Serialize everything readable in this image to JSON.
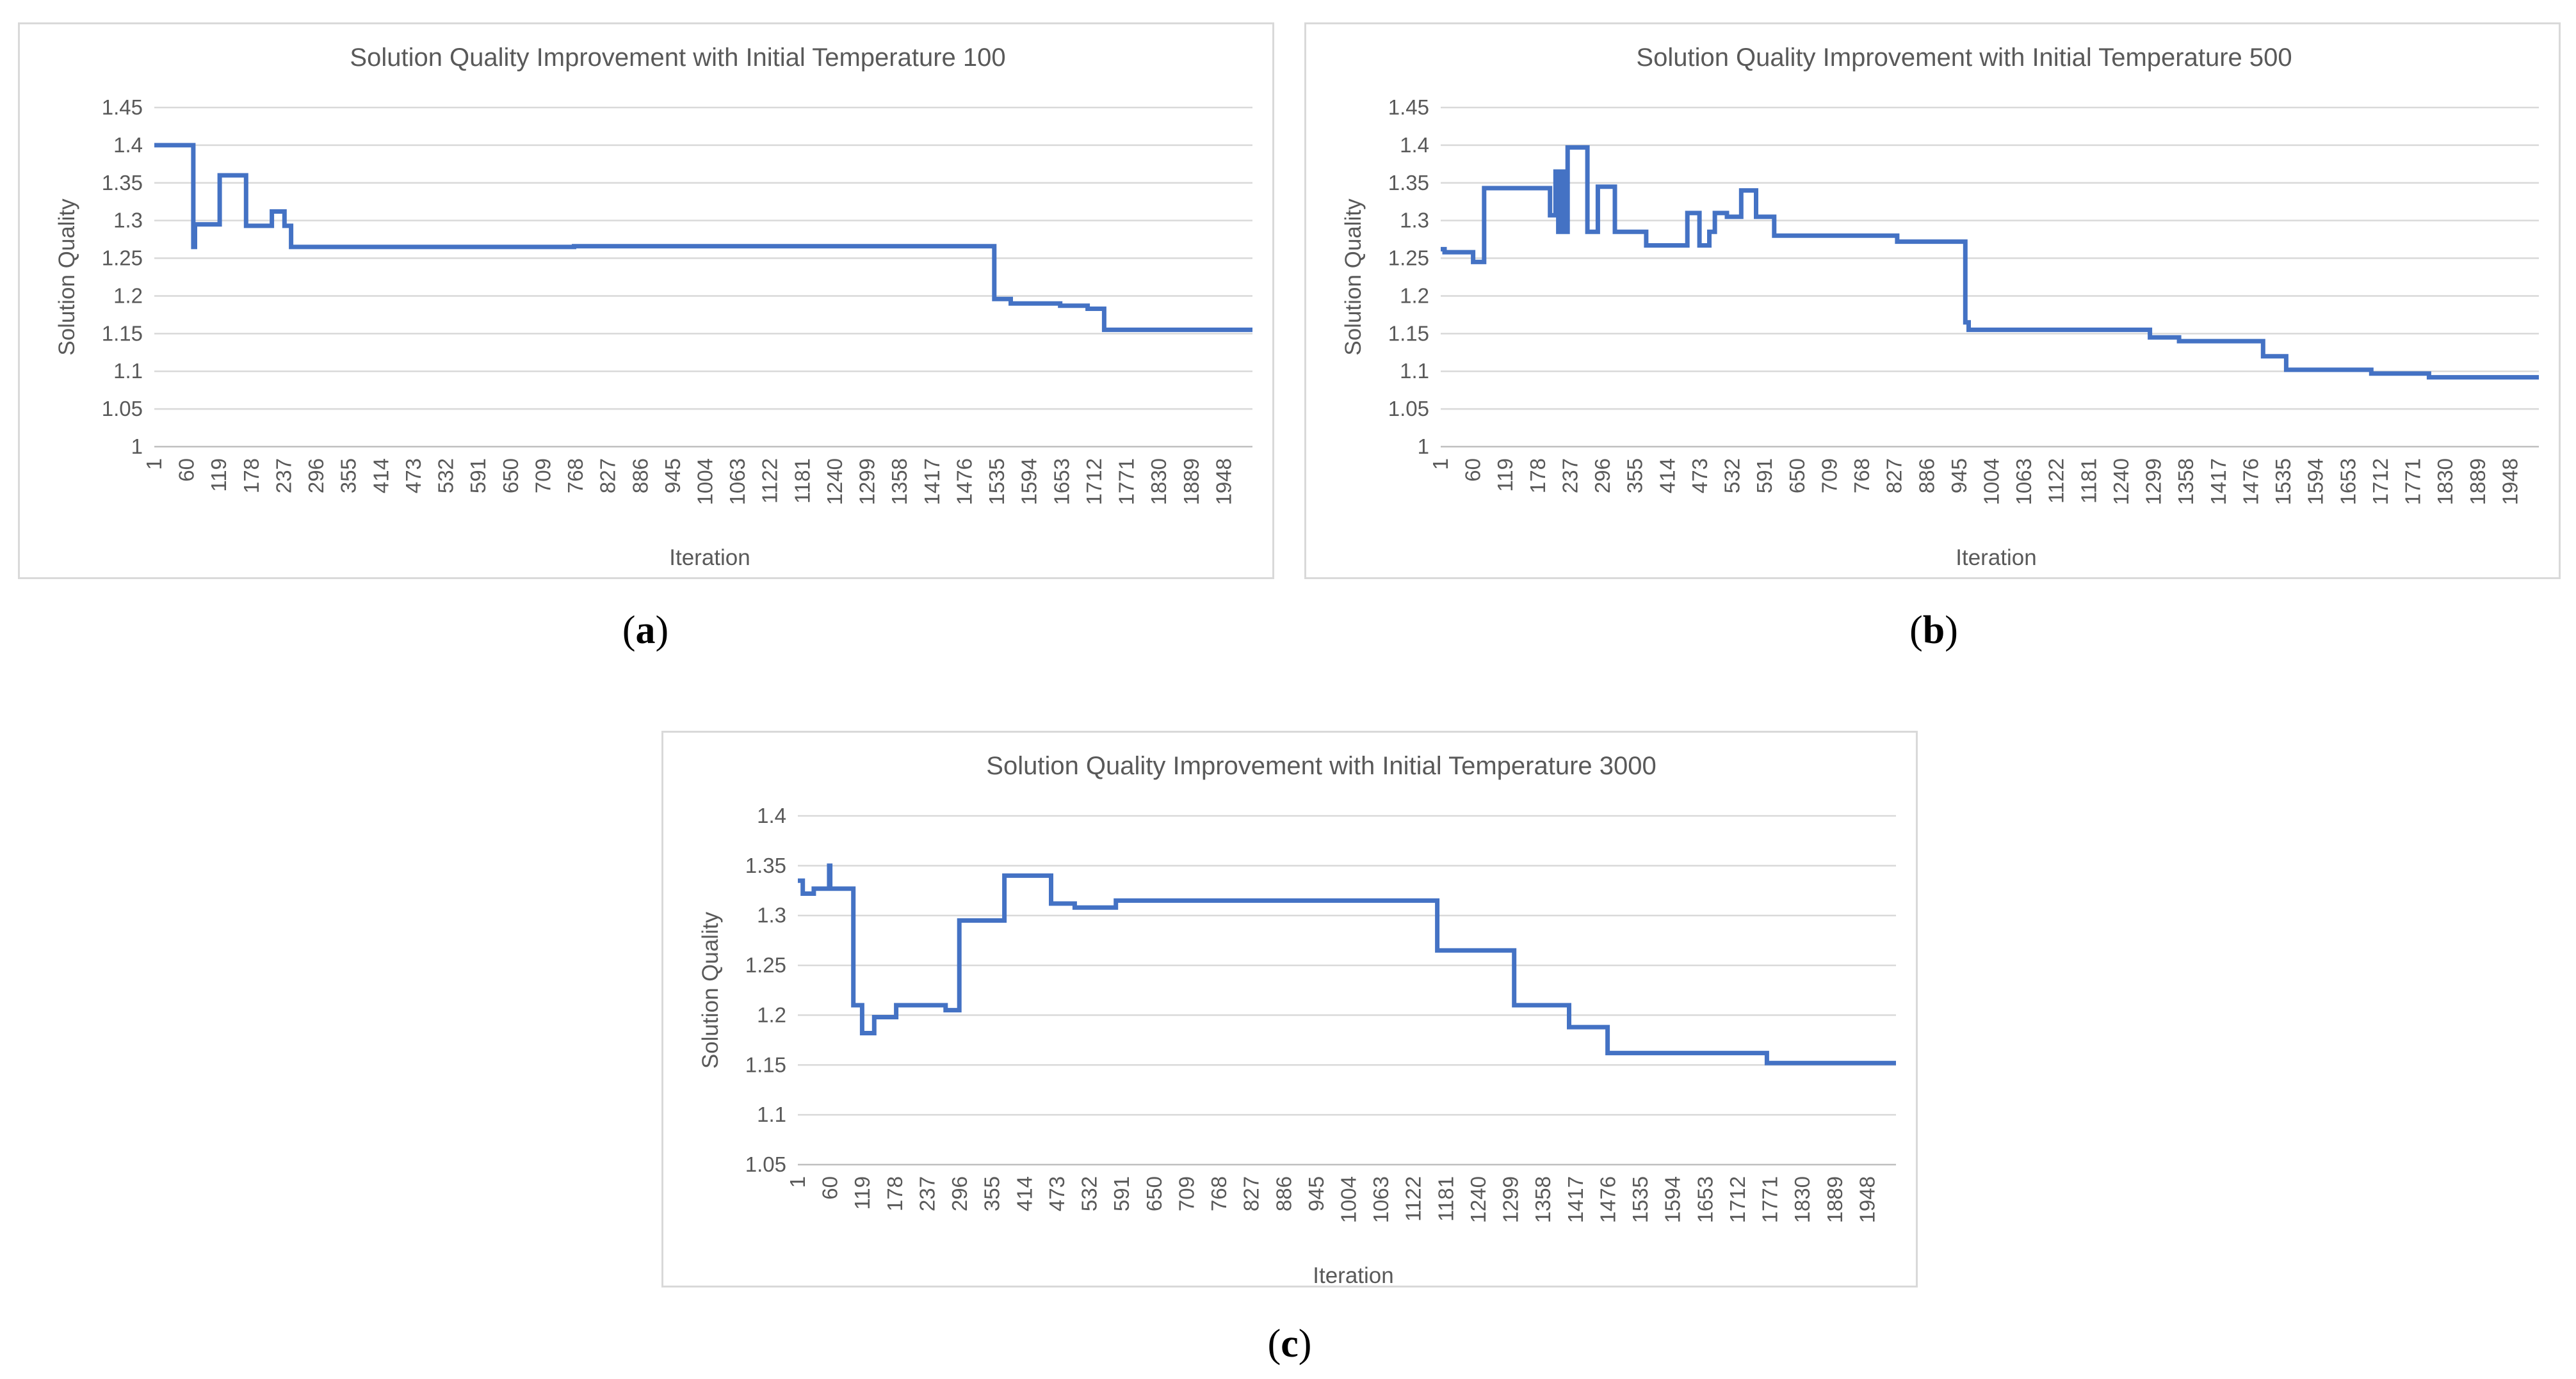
{
  "colors": {
    "series": "#4472c4",
    "grid": "#d9d9d9",
    "text": "#595959"
  },
  "captions": [
    "a",
    "b",
    "c"
  ],
  "chart_data": [
    {
      "type": "line",
      "title": "Solution Quality Improvement with Initial Temperature 100",
      "xlabel": "Iteration",
      "ylabel": "Solution Quality",
      "ylim": [
        1,
        1.45
      ],
      "ytick_step": 0.05,
      "yticks": [
        "1",
        "1.05",
        "1.1",
        "1.15",
        "1.2",
        "1.25",
        "1.3",
        "1.35",
        "1.4",
        "1.45"
      ],
      "xlim": [
        1,
        2000
      ],
      "xticks": [
        "1",
        "60",
        "119",
        "178",
        "237",
        "296",
        "355",
        "414",
        "473",
        "532",
        "591",
        "650",
        "709",
        "768",
        "827",
        "886",
        "945",
        "1004",
        "1063",
        "1122",
        "1181",
        "1240",
        "1299",
        "1358",
        "1417",
        "1476",
        "1535",
        "1594",
        "1653",
        "1712",
        "1771",
        "1830",
        "1889",
        "1948"
      ],
      "grid": true,
      "series": [
        {
          "name": "Solution Quality",
          "points": [
            [
              1,
              1.4
            ],
            [
              72,
              1.4
            ],
            [
              72,
              1.265
            ],
            [
              75,
              1.265
            ],
            [
              75,
              1.295
            ],
            [
              120,
              1.295
            ],
            [
              120,
              1.36
            ],
            [
              168,
              1.36
            ],
            [
              168,
              1.293
            ],
            [
              215,
              1.293
            ],
            [
              215,
              1.312
            ],
            [
              238,
              1.312
            ],
            [
              238,
              1.293
            ],
            [
              250,
              1.293
            ],
            [
              250,
              1.265
            ],
            [
              765,
              1.265
            ],
            [
              765,
              1.266
            ],
            [
              1530,
              1.266
            ],
            [
              1530,
              1.196
            ],
            [
              1560,
              1.196
            ],
            [
              1560,
              1.19
            ],
            [
              1650,
              1.19
            ],
            [
              1650,
              1.187
            ],
            [
              1700,
              1.187
            ],
            [
              1700,
              1.183
            ],
            [
              1730,
              1.183
            ],
            [
              1730,
              1.155
            ],
            [
              2000,
              1.155
            ]
          ]
        }
      ]
    },
    {
      "type": "line",
      "title": "Solution Quality Improvement with Initial Temperature 500",
      "xlabel": "Iteration",
      "ylabel": "Solution Quality",
      "ylim": [
        1,
        1.45
      ],
      "ytick_step": 0.05,
      "yticks": [
        "1",
        "1.05",
        "1.1",
        "1.15",
        "1.2",
        "1.25",
        "1.3",
        "1.35",
        "1.4",
        "1.45"
      ],
      "xlim": [
        1,
        2000
      ],
      "xticks": [
        "1",
        "60",
        "119",
        "178",
        "237",
        "296",
        "355",
        "414",
        "473",
        "532",
        "591",
        "650",
        "709",
        "768",
        "827",
        "886",
        "945",
        "1004",
        "1063",
        "1122",
        "1181",
        "1240",
        "1299",
        "1358",
        "1417",
        "1476",
        "1535",
        "1594",
        "1653",
        "1712",
        "1771",
        "1830",
        "1889",
        "1948"
      ],
      "grid": true,
      "series": [
        {
          "name": "Solution Quality",
          "points": [
            [
              1,
              1.262
            ],
            [
              8,
              1.262
            ],
            [
              8,
              1.258
            ],
            [
              60,
              1.258
            ],
            [
              60,
              1.245
            ],
            [
              80,
              1.245
            ],
            [
              80,
              1.343
            ],
            [
              200,
              1.343
            ],
            [
              200,
              1.307
            ],
            [
              210,
              1.307
            ],
            [
              210,
              1.365
            ],
            [
              215,
              1.365
            ],
            [
              215,
              1.285
            ],
            [
              220,
              1.285
            ],
            [
              220,
              1.365
            ],
            [
              225,
              1.365
            ],
            [
              225,
              1.285
            ],
            [
              232,
              1.285
            ],
            [
              232,
              1.397
            ],
            [
              268,
              1.397
            ],
            [
              268,
              1.285
            ],
            [
              287,
              1.285
            ],
            [
              287,
              1.345
            ],
            [
              318,
              1.345
            ],
            [
              318,
              1.285
            ],
            [
              375,
              1.285
            ],
            [
              375,
              1.267
            ],
            [
              450,
              1.267
            ],
            [
              450,
              1.31
            ],
            [
              472,
              1.31
            ],
            [
              472,
              1.267
            ],
            [
              490,
              1.267
            ],
            [
              490,
              1.285
            ],
            [
              500,
              1.285
            ],
            [
              500,
              1.31
            ],
            [
              522,
              1.31
            ],
            [
              522,
              1.305
            ],
            [
              548,
              1.305
            ],
            [
              548,
              1.34
            ],
            [
              575,
              1.34
            ],
            [
              575,
              1.305
            ],
            [
              608,
              1.305
            ],
            [
              608,
              1.28
            ],
            [
              832,
              1.28
            ],
            [
              832,
              1.272
            ],
            [
              956,
              1.272
            ],
            [
              956,
              1.165
            ],
            [
              962,
              1.165
            ],
            [
              962,
              1.155
            ],
            [
              1292,
              1.155
            ],
            [
              1292,
              1.145
            ],
            [
              1345,
              1.145
            ],
            [
              1345,
              1.14
            ],
            [
              1498,
              1.14
            ],
            [
              1498,
              1.12
            ],
            [
              1540,
              1.12
            ],
            [
              1540,
              1.102
            ],
            [
              1695,
              1.102
            ],
            [
              1695,
              1.097
            ],
            [
              1800,
              1.097
            ],
            [
              1800,
              1.092
            ],
            [
              2000,
              1.092
            ]
          ]
        }
      ]
    },
    {
      "type": "line",
      "title": "Solution Quality Improvement with Initial Temperature 3000",
      "xlabel": "Iteration",
      "ylabel": "Solution Quality",
      "ylim": [
        1.05,
        1.4
      ],
      "ytick_step": 0.05,
      "yticks": [
        "1.05",
        "1.1",
        "1.15",
        "1.2",
        "1.25",
        "1.3",
        "1.35",
        "1.4"
      ],
      "xlim": [
        1,
        2000
      ],
      "xticks": [
        "1",
        "60",
        "119",
        "178",
        "237",
        "296",
        "355",
        "414",
        "473",
        "532",
        "591",
        "650",
        "709",
        "768",
        "827",
        "886",
        "945",
        "1004",
        "1063",
        "1122",
        "1181",
        "1240",
        "1299",
        "1358",
        "1417",
        "1476",
        "1535",
        "1594",
        "1653",
        "1712",
        "1771",
        "1830",
        "1889",
        "1948"
      ],
      "grid": true,
      "series": [
        {
          "name": "Solution Quality",
          "points": [
            [
              1,
              1.335
            ],
            [
              10,
              1.335
            ],
            [
              10,
              1.322
            ],
            [
              30,
              1.322
            ],
            [
              30,
              1.327
            ],
            [
              58,
              1.327
            ],
            [
              58,
              1.35
            ],
            [
              60,
              1.35
            ],
            [
              60,
              1.327
            ],
            [
              102,
              1.327
            ],
            [
              102,
              1.21
            ],
            [
              118,
              1.21
            ],
            [
              118,
              1.182
            ],
            [
              140,
              1.182
            ],
            [
              140,
              1.198
            ],
            [
              180,
              1.198
            ],
            [
              180,
              1.21
            ],
            [
              270,
              1.21
            ],
            [
              270,
              1.205
            ],
            [
              295,
              1.205
            ],
            [
              295,
              1.295
            ],
            [
              377,
              1.295
            ],
            [
              377,
              1.34
            ],
            [
              462,
              1.34
            ],
            [
              462,
              1.312
            ],
            [
              505,
              1.312
            ],
            [
              505,
              1.308
            ],
            [
              580,
              1.308
            ],
            [
              580,
              1.315
            ],
            [
              1165,
              1.315
            ],
            [
              1165,
              1.265
            ],
            [
              1305,
              1.265
            ],
            [
              1305,
              1.21
            ],
            [
              1405,
              1.21
            ],
            [
              1405,
              1.188
            ],
            [
              1475,
              1.188
            ],
            [
              1475,
              1.162
            ],
            [
              1765,
              1.162
            ],
            [
              1765,
              1.152
            ],
            [
              2000,
              1.152
            ]
          ]
        }
      ]
    }
  ]
}
